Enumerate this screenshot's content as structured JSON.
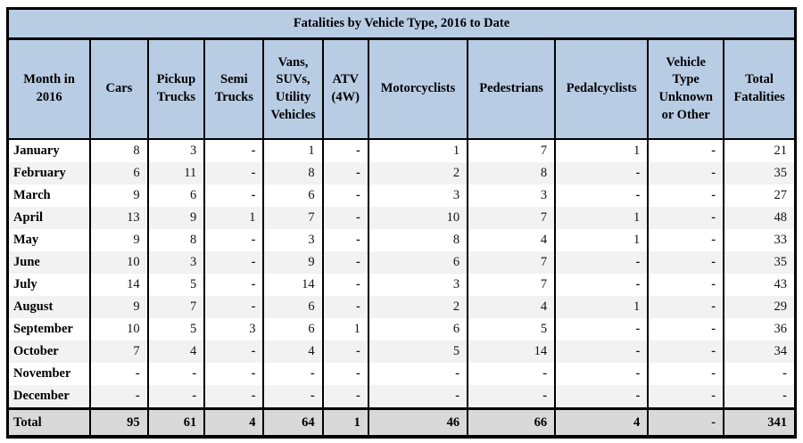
{
  "title": "Fatalities by Vehicle Type, 2016 to Date",
  "table": {
    "columns": [
      "Month in 2016",
      "Cars",
      "Pickup Trucks",
      "Semi Trucks",
      "Vans, SUVs, Utility Vehicles",
      "ATV (4W)",
      "Motorcyclists",
      "Pedestrians",
      "Pedalcyclists",
      "Vehicle Type Unknown or Other",
      "Total Fatalities"
    ],
    "rows": [
      {
        "month": "January",
        "values": [
          "8",
          "3",
          "-",
          "1",
          "-",
          "1",
          "7",
          "1",
          "-",
          "21"
        ]
      },
      {
        "month": "February",
        "values": [
          "6",
          "11",
          "-",
          "8",
          "-",
          "2",
          "8",
          "-",
          "-",
          "35"
        ]
      },
      {
        "month": "March",
        "values": [
          "9",
          "6",
          "-",
          "6",
          "-",
          "3",
          "3",
          "-",
          "-",
          "27"
        ]
      },
      {
        "month": "April",
        "values": [
          "13",
          "9",
          "1",
          "7",
          "-",
          "10",
          "7",
          "1",
          "-",
          "48"
        ]
      },
      {
        "month": "May",
        "values": [
          "9",
          "8",
          "-",
          "3",
          "-",
          "8",
          "4",
          "1",
          "-",
          "33"
        ]
      },
      {
        "month": "June",
        "values": [
          "10",
          "3",
          "-",
          "9",
          "-",
          "6",
          "7",
          "-",
          "-",
          "35"
        ]
      },
      {
        "month": "July",
        "values": [
          "14",
          "5",
          "-",
          "14",
          "-",
          "3",
          "7",
          "-",
          "-",
          "43"
        ]
      },
      {
        "month": "August",
        "values": [
          "9",
          "7",
          "-",
          "6",
          "-",
          "2",
          "4",
          "1",
          "-",
          "29"
        ]
      },
      {
        "month": "September",
        "values": [
          "10",
          "5",
          "3",
          "6",
          "1",
          "6",
          "5",
          "-",
          "-",
          "36"
        ]
      },
      {
        "month": "October",
        "values": [
          "7",
          "4",
          "-",
          "4",
          "-",
          "5",
          "14",
          "-",
          "-",
          "34"
        ]
      },
      {
        "month": "November",
        "values": [
          "-",
          "-",
          "-",
          "-",
          "-",
          "-",
          "-",
          "-",
          "-",
          "-"
        ]
      },
      {
        "month": "December",
        "values": [
          "-",
          "-",
          "-",
          "-",
          "-",
          "-",
          "-",
          "-",
          "-",
          "-"
        ]
      }
    ],
    "total_row": {
      "label": "Total",
      "values": [
        "95",
        "61",
        "4",
        "64",
        "1",
        "46",
        "66",
        "4",
        "-",
        "341"
      ]
    }
  },
  "colors": {
    "header_bg": "#b8cce4",
    "alt_row_bg": "#f2f2f2",
    "total_row_bg": "#d9d9d9",
    "border": "#000000",
    "text": "#000000"
  }
}
